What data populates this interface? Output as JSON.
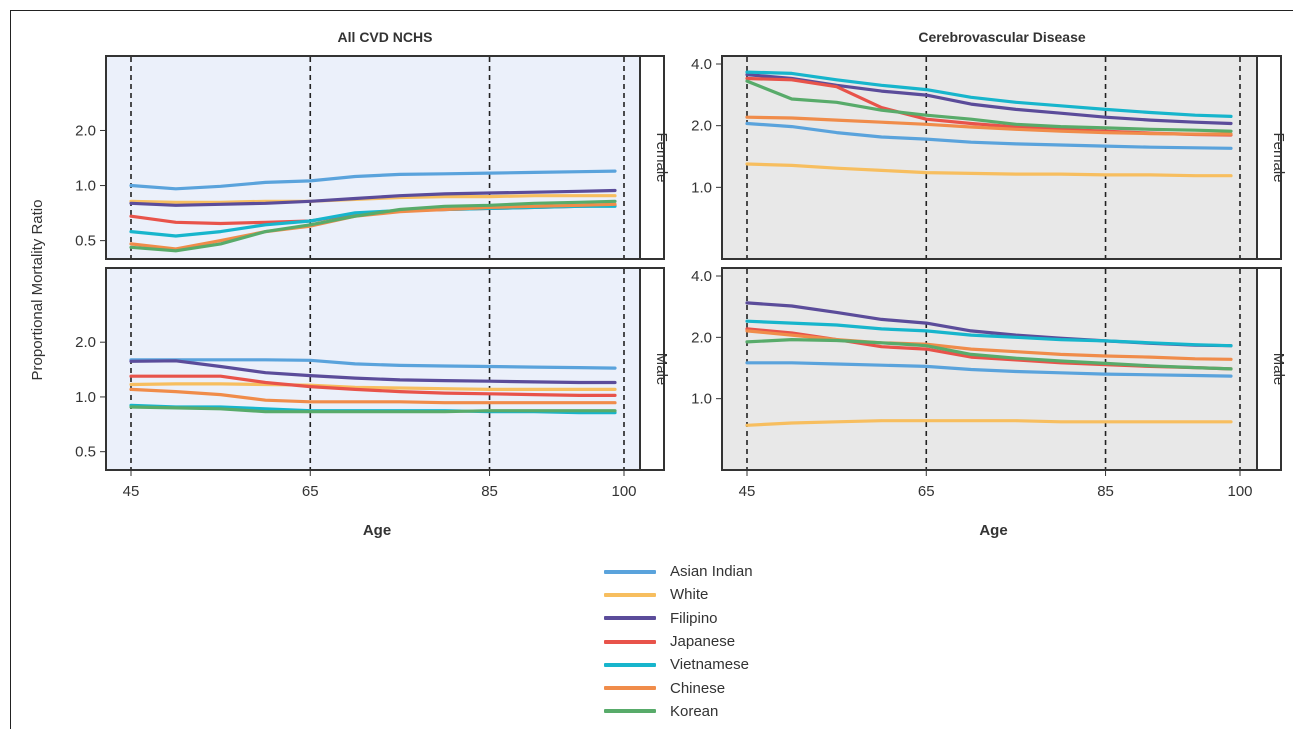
{
  "chart_data": {
    "type": "line",
    "ylabel": "Proportional Mortality Ratio",
    "xlabel": "Age",
    "x_ticks": [
      "45",
      "65",
      "85",
      "100"
    ],
    "y_scale": "log",
    "legend_position": "bottom-center",
    "series_meta": [
      {
        "name": "Asian Indian",
        "color": "#5aa3dc"
      },
      {
        "name": "White",
        "color": "#f7be5f"
      },
      {
        "name": "Filipino",
        "color": "#5b4c9a"
      },
      {
        "name": "Japanese",
        "color": "#e8534a"
      },
      {
        "name": "Vietnamese",
        "color": "#17b5cc"
      },
      {
        "name": "Chinese",
        "color": "#f08c4a"
      },
      {
        "name": "Korean",
        "color": "#58ab6a"
      }
    ],
    "columns": [
      {
        "title": "All CVD NCHS",
        "background": "#ebf0fa"
      },
      {
        "title": "Cerebrovascular Disease",
        "background": "#e8e8e8"
      }
    ],
    "rows": [
      "Female",
      "Male"
    ],
    "panels": [
      {
        "title": "All CVD NCHS",
        "row": "Female",
        "x": [
          45,
          50,
          55,
          60,
          65,
          70,
          75,
          80,
          85,
          90,
          95,
          99
        ],
        "ylim": [
          0.45,
          3.5
        ],
        "y_ticks": [
          "0.5",
          "1.0",
          "2.0"
        ],
        "series": [
          {
            "name": "Asian Indian",
            "values": [
              1.0,
              0.96,
              0.99,
              1.04,
              1.06,
              1.12,
              1.15,
              1.16,
              1.17,
              1.18,
              1.19,
              1.2
            ]
          },
          {
            "name": "White",
            "values": [
              0.82,
              0.81,
              0.81,
              0.82,
              0.82,
              0.84,
              0.86,
              0.87,
              0.87,
              0.88,
              0.88,
              0.88
            ]
          },
          {
            "name": "Filipino",
            "values": [
              0.8,
              0.78,
              0.79,
              0.8,
              0.82,
              0.85,
              0.88,
              0.9,
              0.91,
              0.92,
              0.93,
              0.94
            ]
          },
          {
            "name": "Japanese",
            "values": [
              0.68,
              0.63,
              0.62,
              0.63,
              0.64,
              0.7,
              0.73,
              0.74,
              0.75,
              0.76,
              0.77,
              0.78
            ]
          },
          {
            "name": "Vietnamese",
            "values": [
              0.56,
              0.53,
              0.56,
              0.61,
              0.64,
              0.71,
              0.73,
              0.74,
              0.75,
              0.76,
              0.77,
              0.77
            ]
          },
          {
            "name": "Chinese",
            "values": [
              0.48,
              0.45,
              0.5,
              0.56,
              0.6,
              0.68,
              0.72,
              0.74,
              0.76,
              0.77,
              0.78,
              0.79
            ]
          },
          {
            "name": "Korean",
            "values": [
              0.46,
              0.44,
              0.48,
              0.56,
              0.61,
              0.68,
              0.74,
              0.77,
              0.78,
              0.8,
              0.81,
              0.82
            ]
          }
        ]
      },
      {
        "title": "All CVD NCHS",
        "row": "Male",
        "x": [
          45,
          50,
          55,
          60,
          65,
          70,
          75,
          80,
          85,
          90,
          95,
          99
        ],
        "ylim": [
          0.45,
          3.5
        ],
        "y_ticks": [
          "0.5",
          "1.0",
          "2.0"
        ],
        "series": [
          {
            "name": "Asian Indian",
            "values": [
              1.6,
              1.6,
              1.6,
              1.6,
              1.59,
              1.52,
              1.49,
              1.48,
              1.47,
              1.46,
              1.45,
              1.44
            ]
          },
          {
            "name": "White",
            "values": [
              1.17,
              1.18,
              1.18,
              1.17,
              1.16,
              1.13,
              1.12,
              1.11,
              1.1,
              1.1,
              1.1,
              1.1
            ]
          },
          {
            "name": "Filipino",
            "values": [
              1.57,
              1.58,
              1.47,
              1.36,
              1.31,
              1.27,
              1.24,
              1.23,
              1.22,
              1.21,
              1.2,
              1.2
            ]
          },
          {
            "name": "Japanese",
            "values": [
              1.3,
              1.3,
              1.3,
              1.2,
              1.14,
              1.1,
              1.07,
              1.05,
              1.04,
              1.03,
              1.02,
              1.02
            ]
          },
          {
            "name": "Vietnamese",
            "values": [
              0.9,
              0.88,
              0.88,
              0.86,
              0.84,
              0.84,
              0.84,
              0.84,
              0.83,
              0.83,
              0.82,
              0.82
            ]
          },
          {
            "name": "Chinese",
            "values": [
              1.1,
              1.07,
              1.03,
              0.96,
              0.94,
              0.94,
              0.94,
              0.93,
              0.93,
              0.93,
              0.93,
              0.93
            ]
          },
          {
            "name": "Korean",
            "values": [
              0.88,
              0.87,
              0.86,
              0.83,
              0.83,
              0.83,
              0.83,
              0.83,
              0.84,
              0.84,
              0.84,
              0.84
            ]
          }
        ]
      },
      {
        "title": "Cerebrovascular Disease",
        "row": "Female",
        "x": [
          45,
          50,
          55,
          60,
          65,
          70,
          75,
          80,
          85,
          90,
          95,
          99
        ],
        "ylim": [
          0.5,
          4.0
        ],
        "y_ticks": [
          "1.0",
          "2.0",
          "4.0"
        ],
        "series": [
          {
            "name": "Asian Indian",
            "values": [
              2.05,
              1.98,
              1.85,
              1.76,
              1.72,
              1.66,
              1.63,
              1.61,
              1.59,
              1.57,
              1.56,
              1.55
            ]
          },
          {
            "name": "White",
            "values": [
              1.3,
              1.28,
              1.24,
              1.21,
              1.18,
              1.17,
              1.16,
              1.16,
              1.15,
              1.15,
              1.14,
              1.14
            ]
          },
          {
            "name": "Filipino",
            "values": [
              3.55,
              3.4,
              3.15,
              2.95,
              2.82,
              2.55,
              2.4,
              2.3,
              2.2,
              2.13,
              2.08,
              2.05
            ]
          },
          {
            "name": "Japanese",
            "values": [
              3.4,
              3.35,
              3.1,
              2.45,
              2.15,
              2.05,
              1.97,
              1.92,
              1.88,
              1.84,
              1.81,
              1.8
            ]
          },
          {
            "name": "Vietnamese",
            "values": [
              3.65,
              3.6,
              3.35,
              3.15,
              3.0,
              2.75,
              2.6,
              2.5,
              2.4,
              2.32,
              2.25,
              2.22
            ]
          },
          {
            "name": "Chinese",
            "values": [
              2.2,
              2.18,
              2.13,
              2.08,
              2.03,
              1.97,
              1.92,
              1.88,
              1.85,
              1.83,
              1.82,
              1.82
            ]
          },
          {
            "name": "Korean",
            "values": [
              3.3,
              2.7,
              2.6,
              2.38,
              2.25,
              2.15,
              2.03,
              1.98,
              1.95,
              1.92,
              1.9,
              1.88
            ]
          }
        ]
      },
      {
        "title": "Cerebrovascular Disease",
        "row": "Male",
        "x": [
          45,
          50,
          55,
          60,
          65,
          70,
          75,
          80,
          85,
          90,
          95,
          99
        ],
        "ylim": [
          0.5,
          4.0
        ],
        "y_ticks": [
          "1.0",
          "2.0",
          "4.0"
        ],
        "series": [
          {
            "name": "Asian Indian",
            "values": [
              1.5,
              1.5,
              1.48,
              1.46,
              1.44,
              1.39,
              1.36,
              1.34,
              1.32,
              1.31,
              1.3,
              1.29
            ]
          },
          {
            "name": "White",
            "values": [
              0.74,
              0.76,
              0.77,
              0.78,
              0.78,
              0.78,
              0.78,
              0.77,
              0.77,
              0.77,
              0.77,
              0.77
            ]
          },
          {
            "name": "Filipino",
            "values": [
              2.95,
              2.85,
              2.65,
              2.45,
              2.35,
              2.15,
              2.05,
              1.98,
              1.92,
              1.87,
              1.83,
              1.82
            ]
          },
          {
            "name": "Japanese",
            "values": [
              2.2,
              2.1,
              1.95,
              1.8,
              1.75,
              1.6,
              1.55,
              1.5,
              1.47,
              1.44,
              1.42,
              1.4
            ]
          },
          {
            "name": "Vietnamese",
            "values": [
              2.4,
              2.35,
              2.3,
              2.2,
              2.15,
              2.05,
              2.0,
              1.95,
              1.92,
              1.88,
              1.84,
              1.82
            ]
          },
          {
            "name": "Chinese",
            "values": [
              2.15,
              2.05,
              1.95,
              1.88,
              1.85,
              1.75,
              1.7,
              1.65,
              1.62,
              1.6,
              1.57,
              1.56
            ]
          },
          {
            "name": "Korean",
            "values": [
              1.9,
              1.95,
              1.93,
              1.88,
              1.82,
              1.65,
              1.58,
              1.53,
              1.49,
              1.45,
              1.42,
              1.4
            ]
          }
        ]
      }
    ]
  }
}
